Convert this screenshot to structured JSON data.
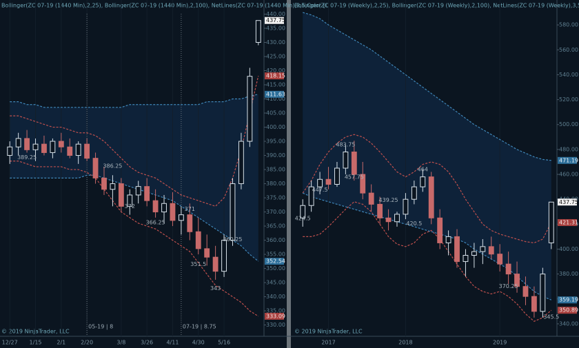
{
  "chart_data": [
    {
      "type": "candlestick",
      "title": "Bollinger(ZC 07-19 (1440 Min),2,25), Bollinger(ZC 07-19 (1440 Min),2,100), NetLines(ZC 07-19 (1440 Min),3,5,Color [L",
      "footer": "© 2019 NinjaTrader, LLC",
      "categories": [
        "12/27",
        null,
        null,
        "1/15",
        null,
        null,
        "2/1",
        null,
        null,
        "2/20",
        null,
        null,
        null,
        "3/8",
        null,
        null,
        "3/26",
        null,
        null,
        "4/11",
        null,
        null,
        "4/30",
        null,
        null,
        "5/16",
        null,
        null,
        null,
        null
      ],
      "open": [
        390,
        393,
        396,
        392,
        394,
        391,
        395,
        393,
        390,
        394,
        389,
        382,
        378,
        380,
        372,
        376,
        379,
        374,
        370,
        373,
        367,
        369,
        363,
        357,
        354,
        349,
        360,
        380,
        395,
        430
      ],
      "high": [
        395,
        398,
        399,
        396,
        397,
        396,
        398,
        396,
        395,
        396,
        391,
        386,
        383,
        382,
        378,
        381,
        382,
        378,
        376,
        377,
        372,
        373,
        368,
        362,
        358,
        362,
        382,
        398,
        421,
        437.75
      ],
      "low": [
        387,
        390,
        391,
        388,
        390,
        389,
        391,
        389,
        387,
        388,
        380,
        376,
        372,
        370,
        369,
        373,
        372,
        368,
        366,
        365,
        362,
        360,
        355,
        351,
        346,
        347,
        358,
        378,
        393,
        429
      ],
      "close": [
        393,
        396,
        392,
        394,
        391,
        395,
        393,
        390,
        394,
        389,
        382,
        378,
        380,
        372,
        376,
        379,
        374,
        370,
        373,
        367,
        369,
        363,
        357,
        354,
        349,
        360,
        380,
        395,
        418,
        437.75
      ],
      "series": [
        {
          "color": "#c0504d",
          "values": [
            404,
            404,
            403,
            402,
            401,
            400,
            400,
            399,
            398,
            398,
            397,
            395,
            392,
            389,
            386,
            384,
            383,
            382,
            380,
            378,
            376,
            375,
            374,
            373,
            372,
            375,
            382,
            392,
            405,
            418.15
          ]
        },
        {
          "color": "#c0504d",
          "values": [
            388,
            388,
            387,
            386,
            386,
            386,
            386,
            385,
            385,
            384,
            382,
            378,
            374,
            370,
            368,
            366,
            365,
            364,
            362,
            360,
            358,
            356,
            352,
            348,
            344,
            342,
            340,
            338,
            335,
            333.09
          ]
        },
        {
          "color": "#3f86b8",
          "values": [
            409,
            409,
            408,
            408,
            407,
            407,
            407,
            407,
            407,
            407,
            407,
            407,
            407,
            407,
            408,
            408,
            408,
            408,
            408,
            408,
            408,
            408,
            408,
            409,
            409,
            409,
            410,
            410,
            411,
            411.63
          ]
        },
        {
          "color": "#3f86b8",
          "values": [
            382,
            382,
            382,
            382,
            382,
            382,
            382,
            382,
            382,
            383,
            383,
            382,
            381,
            380,
            379,
            378,
            377,
            376,
            375,
            374,
            372,
            370,
            368,
            366,
            364,
            362,
            360,
            358,
            355,
            352.54
          ]
        }
      ],
      "markers": [
        "05-19 | 8",
        "07-19 | 8.75"
      ],
      "annotations": [
        389.25,
        386.25,
        372,
        366.25,
        351.5,
        343,
        360.25,
        371
      ],
      "ylim": [
        326,
        445
      ],
      "yticks": [
        {
          "value": 330,
          "label": "330.00"
        },
        {
          "value": 335,
          "label": "335.00"
        },
        {
          "value": 340,
          "label": "340.00"
        },
        {
          "value": 345,
          "label": "345.00"
        },
        {
          "value": 350,
          "label": "350.00"
        },
        {
          "value": 355,
          "label": "355.00"
        },
        {
          "value": 360,
          "label": "360.00"
        },
        {
          "value": 365,
          "label": "365.00"
        },
        {
          "value": 370,
          "label": "370.00"
        },
        {
          "value": 375,
          "label": "375.00"
        },
        {
          "value": 380,
          "label": "380.00"
        },
        {
          "value": 385,
          "label": "385.00"
        },
        {
          "value": 390,
          "label": "390.00"
        },
        {
          "value": 395,
          "label": "395.00"
        },
        {
          "value": 400,
          "label": "400.00"
        },
        {
          "value": 405,
          "label": "405.00"
        },
        {
          "value": 410,
          "label": "410.00"
        },
        {
          "value": 415,
          "label": "415.00"
        },
        {
          "value": 420,
          "label": "420.00"
        },
        {
          "value": 425,
          "label": "425.00"
        },
        {
          "value": 430,
          "label": "430.00"
        },
        {
          "value": 435,
          "label": "435.00"
        },
        {
          "value": 440,
          "label": "440.00"
        }
      ]
    },
    {
      "type": "candlestick",
      "title": "Bollinger(ZC 07-19 (Weekly),2,25), Bollinger(ZC 07-19 (Weekly),2,100), NetLines(ZC 07-19 (Weekly),3,5,Color [LightS",
      "footer": "© 2019 NinjaTrader, LLC",
      "categories": [
        null,
        null,
        null,
        "2017",
        null,
        null,
        null,
        null,
        null,
        null,
        null,
        null,
        "2018",
        null,
        null,
        null,
        null,
        null,
        null,
        null,
        null,
        null,
        null,
        "2019",
        null,
        null,
        null,
        null,
        null,
        null
      ],
      "open": [
        425,
        435,
        450,
        456,
        452,
        465,
        478,
        460,
        445,
        436,
        425,
        422,
        428,
        440,
        450,
        458,
        425,
        405,
        410,
        390,
        395,
        398,
        402,
        396,
        388,
        380,
        370,
        362,
        350,
        405
      ],
      "high": [
        440,
        455,
        462,
        466,
        470,
        484,
        487,
        470,
        452,
        442,
        432,
        430,
        445,
        455,
        464,
        462,
        432,
        415,
        416,
        400,
        405,
        408,
        410,
        404,
        398,
        390,
        378,
        370,
        385,
        437.75
      ],
      "low": [
        418,
        430,
        444,
        448,
        450,
        460,
        455,
        440,
        430,
        420,
        415,
        418,
        424,
        436,
        446,
        420,
        400,
        395,
        385,
        378,
        385,
        388,
        392,
        382,
        372,
        365,
        355,
        345,
        345,
        400
      ],
      "close": [
        435,
        450,
        456,
        452,
        465,
        478,
        460,
        445,
        436,
        425,
        422,
        428,
        440,
        450,
        458,
        425,
        405,
        410,
        390,
        395,
        398,
        402,
        396,
        388,
        380,
        370,
        362,
        350,
        380,
        437.75
      ],
      "series": [
        {
          "color": "#c0504d",
          "values": [
            445,
            455,
            468,
            478,
            485,
            490,
            492,
            490,
            485,
            478,
            470,
            462,
            458,
            462,
            468,
            470,
            468,
            462,
            452,
            440,
            430,
            420,
            415,
            412,
            410,
            408,
            406,
            405,
            408,
            421.31
          ]
        },
        {
          "color": "#c0504d",
          "values": [
            410,
            410,
            412,
            418,
            425,
            432,
            438,
            436,
            430,
            420,
            410,
            404,
            402,
            405,
            412,
            415,
            408,
            398,
            388,
            378,
            370,
            366,
            364,
            366,
            362,
            356,
            348,
            342,
            345,
            350.89
          ]
        },
        {
          "color": "#3f86b8",
          "values": [
            590,
            588,
            585,
            580,
            576,
            572,
            568,
            564,
            560,
            555,
            550,
            545,
            540,
            535,
            530,
            525,
            520,
            515,
            510,
            505,
            500,
            496,
            492,
            488,
            484,
            480,
            477,
            474,
            472,
            471.19
          ]
        },
        {
          "color": "#3f86b8",
          "values": [
            445,
            442,
            440,
            438,
            436,
            434,
            432,
            430,
            428,
            426,
            424,
            422,
            420,
            418,
            416,
            414,
            412,
            410,
            408,
            405,
            400,
            396,
            392,
            388,
            384,
            378,
            372,
            366,
            362,
            359.19
          ]
        }
      ],
      "markers": [],
      "annotations": [
        483.75,
        457.75,
        447.5,
        424.5,
        439.25,
        420.5,
        464,
        370.25,
        345.5
      ],
      "ylim": [
        330,
        600
      ],
      "yticks": [
        {
          "value": 340,
          "label": "340.00"
        },
        {
          "value": 360,
          "label": "360.00"
        },
        {
          "value": 380,
          "label": "380.00"
        },
        {
          "value": 400,
          "label": "400.00"
        },
        {
          "value": 420,
          "label": "420.00"
        },
        {
          "value": 440,
          "label": "440.00"
        },
        {
          "value": 460,
          "label": "460.00"
        },
        {
          "value": 480,
          "label": "480.00"
        },
        {
          "value": 500,
          "label": "500.00"
        },
        {
          "value": 520,
          "label": "520.00"
        },
        {
          "value": 540,
          "label": "540.00"
        },
        {
          "value": 560,
          "label": "560.00"
        },
        {
          "value": 580,
          "label": "580.00"
        }
      ]
    }
  ]
}
